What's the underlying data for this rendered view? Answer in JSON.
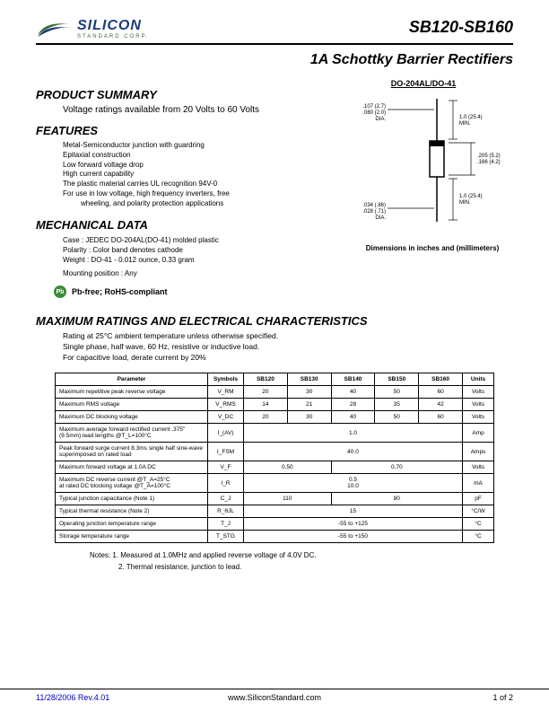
{
  "logo": {
    "main": "SILICON",
    "sub": "STANDARD CORP."
  },
  "part_number": "SB120-SB160",
  "title": "1A Schottky Barrier Rectifiers",
  "summary": {
    "heading": "PRODUCT SUMMARY",
    "text": "Voltage ratings available from 20 Volts to 60 Volts"
  },
  "package_label": "DO-204AL/DO-41",
  "features": {
    "heading": "FEATURES",
    "items": [
      "Metal-Semiconductor junction with guardring",
      "Epitaxial construction",
      "Low forward voltage drop",
      "High current capability",
      "The plastic material carries UL recognition 94V-0",
      "For use in low voltage, high frequency inverters, free",
      "wheeling, and polarity protection applications"
    ]
  },
  "mechanical": {
    "heading": "MECHANICAL DATA",
    "items": [
      "Case : JEDEC DO-204AL(DO-41) molded plastic",
      "Polarity : Color band denotes cathode",
      "Weight : DO-41 - 0.012 ounce, 0.33 gram",
      "Mounting position : Any"
    ]
  },
  "pbfree": "Pb-free; RoHS-compliant",
  "dim_caption": "Dimensions in inches and (millimeters)",
  "diagram": {
    "lead_dia_top": ".107 (2.7)",
    "lead_dia_top2": ".080 (2.0)",
    "dia_label": "DIA.",
    "min_len": "1.0 (25.4)",
    "min": "MIN.",
    "body_len": ".205 (5.2)",
    "body_len2": ".166 (4.2)",
    "lead_dia_bot": ".034 (.86)",
    "lead_dia_bot2": ".028 (.71)"
  },
  "ratings": {
    "heading": "MAXIMUM RATINGS AND ELECTRICAL CHARACTERISTICS",
    "intro1": "Rating at 25°C ambient temperature unless otherwise specified.",
    "intro2": "Single phase, half wave, 60 Hz, resistive or inductive load.",
    "intro3": "For capacitive load, derate current by 20%",
    "columns": [
      "Parameter",
      "Symbols",
      "SB120",
      "SB130",
      "SB140",
      "SB150",
      "SB160",
      "Units"
    ],
    "rows": [
      {
        "param": "Maximum repetitive peak reverse voltage",
        "sym": "V_RM",
        "vals": [
          "20",
          "30",
          "40",
          "50",
          "60"
        ],
        "unit": "Volts"
      },
      {
        "param": "Maximum RMS voltage",
        "sym": "V_RMS",
        "vals": [
          "14",
          "21",
          "28",
          "35",
          "42"
        ],
        "unit": "Volts"
      },
      {
        "param": "Maximum DC blocking voltage",
        "sym": "V_DC",
        "vals": [
          "20",
          "30",
          "40",
          "50",
          "60"
        ],
        "unit": "Volts"
      },
      {
        "param": "Maximum average forward rectified current .375\" (9.5mm) lead lengths @T_L=100°C",
        "sym": "I_(AV)",
        "span": "1.0",
        "unit": "Amp"
      },
      {
        "param": "Peak forward surge current 8.3ms single half sine-wave superimposed on rated load",
        "sym": "I_FSM",
        "span": "40.0",
        "unit": "Amps"
      },
      {
        "param": "Maximum forward voltage at 1.0A DC",
        "sym": "V_F",
        "vals2": [
          {
            "v": "0.50",
            "c": 2
          },
          {
            "v": "0.70",
            "c": 3
          }
        ],
        "unit": "Volts"
      },
      {
        "param": "Maximum DC reverse current     @T_A=25°C\nat rated DC blocking voltage     @T_A=100°C",
        "sym": "I_R",
        "span": "0.5\n10.0",
        "unit": "mA"
      },
      {
        "param": "Typical junction capacitance (Note 1)",
        "sym": "C_J",
        "vals2": [
          {
            "v": "110",
            "c": 2
          },
          {
            "v": "80",
            "c": 3
          }
        ],
        "unit": "pF"
      },
      {
        "param": "Typical thermal resistance (Note 2)",
        "sym": "R_θJL",
        "span": "15",
        "unit": "°C/W"
      },
      {
        "param": "Operating junction temperature range",
        "sym": "T_J",
        "span": "-55 to +125",
        "unit": "°C"
      },
      {
        "param": "Storage temperature range",
        "sym": "T_STG",
        "span": "-55 to +150",
        "unit": "°C"
      }
    ]
  },
  "notes": {
    "n1": "Notes: 1. Measured at 1.0MHz and applied reverse voltage of 4.0V DC.",
    "n2": "2. Thermal resistance, junction to lead."
  },
  "footer": {
    "left": "11/28/2006  Rev.4.01",
    "center": "www.SiliconStandard.com",
    "right": "1 of 2"
  },
  "colors": {
    "logo_blue": "#1a3a7a",
    "logo_green": "#3a6a3a",
    "link": "#0000cc",
    "pb": "#3a8a3a"
  }
}
